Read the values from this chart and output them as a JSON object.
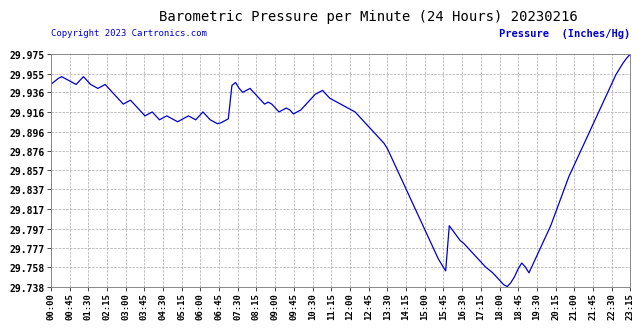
{
  "title": "Barometric Pressure per Minute (24 Hours) 20230216",
  "ylabel": "Pressure  (Inches/Hg)",
  "copyright_text": "Copyright 2023 Cartronics.com",
  "line_color": "#0000CC",
  "ylabel_color": "#0000CC",
  "copyright_color": "#0000CC",
  "background_color": "#ffffff",
  "grid_color": "#aaaaaa",
  "title_color": "#000000",
  "ylim": [
    29.738,
    29.975
  ],
  "yticks": [
    29.975,
    29.955,
    29.936,
    29.916,
    29.896,
    29.876,
    29.857,
    29.837,
    29.817,
    29.797,
    29.777,
    29.758,
    29.738
  ],
  "xtick_labels": [
    "00:00",
    "00:45",
    "01:30",
    "02:15",
    "03:00",
    "03:45",
    "04:30",
    "05:15",
    "06:00",
    "06:45",
    "07:30",
    "08:15",
    "09:00",
    "09:45",
    "10:30",
    "11:15",
    "12:00",
    "12:45",
    "13:30",
    "14:15",
    "15:00",
    "15:45",
    "16:30",
    "17:15",
    "18:00",
    "18:45",
    "19:30",
    "20:15",
    "21:00",
    "21:45",
    "22:30",
    "23:15"
  ],
  "pressure_data": [
    29.944,
    29.947,
    29.95,
    29.952,
    29.95,
    29.948,
    29.946,
    29.944,
    29.948,
    29.952,
    29.948,
    29.944,
    29.942,
    29.94,
    29.942,
    29.944,
    29.94,
    29.936,
    29.932,
    29.928,
    29.924,
    29.926,
    29.928,
    29.924,
    29.92,
    29.916,
    29.912,
    29.914,
    29.916,
    29.912,
    29.908,
    29.91,
    29.912,
    29.91,
    29.908,
    29.906,
    29.908,
    29.91,
    29.912,
    29.91,
    29.908,
    29.912,
    29.916,
    29.912,
    29.908,
    29.906,
    29.904,
    29.905,
    29.907,
    29.909,
    29.943,
    29.946,
    29.94,
    29.936,
    29.938,
    29.94,
    29.936,
    29.932,
    29.928,
    29.924,
    29.926,
    29.924,
    29.92,
    29.916,
    29.918,
    29.92,
    29.918,
    29.914,
    29.916,
    29.918,
    29.922,
    29.926,
    29.93,
    29.934,
    29.936,
    29.938,
    29.934,
    29.93,
    29.928,
    29.926,
    29.924,
    29.922,
    29.92,
    29.918,
    29.916,
    29.912,
    29.908,
    29.904,
    29.9,
    29.896,
    29.892,
    29.888,
    29.884,
    29.878,
    29.87,
    29.862,
    29.854,
    29.846,
    29.838,
    29.83,
    29.822,
    29.814,
    29.806,
    29.798,
    29.79,
    29.782,
    29.774,
    29.766,
    29.76,
    29.754,
    29.8,
    29.795,
    29.79,
    29.785,
    29.782,
    29.778,
    29.774,
    29.77,
    29.766,
    29.762,
    29.758,
    29.755,
    29.752,
    29.748,
    29.744,
    29.74,
    29.738,
    29.742,
    29.748,
    29.756,
    29.762,
    29.758,
    29.752,
    29.76,
    29.768,
    29.776,
    29.784,
    29.792,
    29.8,
    29.81,
    29.82,
    29.83,
    29.84,
    29.85,
    29.858,
    29.866,
    29.874,
    29.882,
    29.89,
    29.898,
    29.906,
    29.914,
    29.922,
    29.93,
    29.938,
    29.946,
    29.954,
    29.96,
    29.966,
    29.971,
    29.975
  ]
}
